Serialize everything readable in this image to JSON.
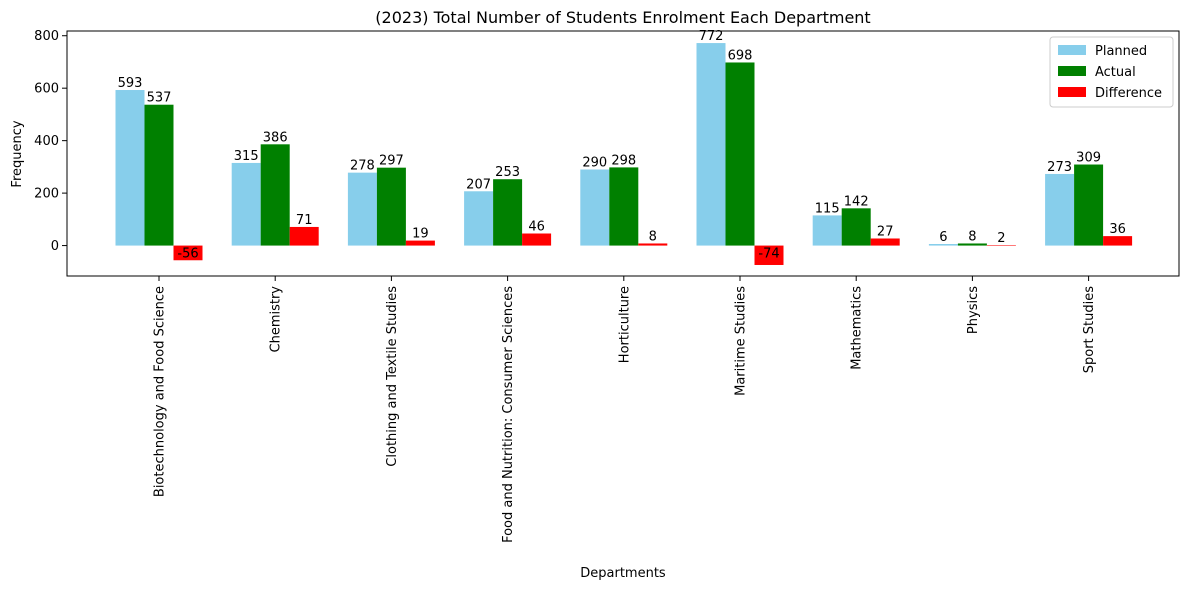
{
  "chart_data": {
    "type": "bar",
    "title": "(2023) Total Number of Students Enrolment Each Department",
    "xlabel": "Departments",
    "ylabel": "Frequency",
    "ylim": [
      -116,
      818
    ],
    "yticks": [
      0,
      200,
      400,
      600,
      800
    ],
    "categories": [
      "Biotechnology and Food Science",
      "Chemistry",
      "Clothing and Textile Studies",
      "Food and Nutrition: Consumer Sciences",
      "Horticulture",
      "Maritime Studies",
      "Mathematics",
      "Physics",
      "Sport Studies"
    ],
    "series": [
      {
        "name": "Planned",
        "color": "#87ceeb",
        "values": [
          593,
          315,
          278,
          207,
          290,
          772,
          115,
          6,
          273
        ]
      },
      {
        "name": "Actual",
        "color": "#008000",
        "values": [
          537,
          386,
          297,
          253,
          298,
          698,
          142,
          8,
          309
        ]
      },
      {
        "name": "Difference",
        "color": "#ff0000",
        "values": [
          -56,
          71,
          19,
          46,
          8,
          -74,
          27,
          2,
          36
        ]
      }
    ],
    "legend": "top-right",
    "grid": false
  }
}
